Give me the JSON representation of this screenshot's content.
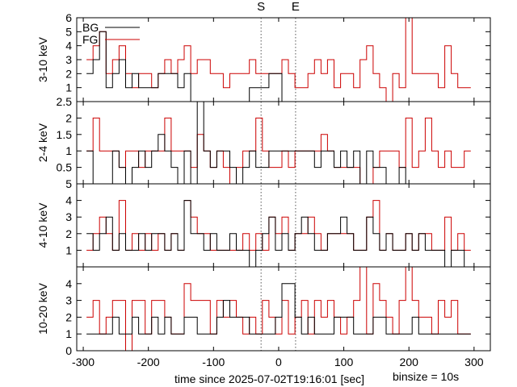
{
  "figure": {
    "markers": [
      {
        "label": "S",
        "x": -27
      },
      {
        "label": "E",
        "x": 26
      }
    ],
    "xlabel": "time since 2025-07-02T19:16:01 [sec]",
    "note": "binsize = 10s",
    "x_ticks": [
      -300,
      -200,
      -100,
      0,
      100,
      200,
      300
    ],
    "xlim": [
      -310,
      325
    ],
    "legend": {
      "bg_label": "BG",
      "fg_label": "FG",
      "position": "top-left"
    },
    "colors": {
      "bg": "#000000",
      "fg": "#cc0000",
      "markers": "#555555"
    }
  },
  "chart_data": [
    {
      "type": "line",
      "ylabel": "3-10 keV",
      "ylim": [
        0,
        6
      ],
      "y_ticks": [
        "1",
        "2",
        "3",
        "4",
        "5",
        "6"
      ],
      "x": [
        -290,
        -280,
        -270,
        -260,
        -250,
        -240,
        -230,
        -220,
        -210,
        -200,
        -190,
        -180,
        -170,
        -160,
        -150,
        -140,
        -130,
        -120,
        -110,
        -100,
        -90,
        -80,
        -70,
        -60,
        -50,
        -40,
        -30,
        -20,
        -10,
        0,
        10,
        20,
        30,
        40,
        50,
        60,
        70,
        80,
        90,
        100,
        110,
        120,
        130,
        140,
        150,
        160,
        170,
        180,
        190,
        200,
        210,
        220,
        230,
        240,
        250,
        260,
        270,
        280,
        290
      ],
      "series": [
        {
          "name": "BG",
          "values": [
            2,
            3,
            5,
            1,
            2,
            3,
            1,
            2,
            1,
            1,
            1,
            2,
            2,
            2,
            1,
            2,
            0,
            0,
            0,
            0,
            0,
            0,
            0,
            0,
            0,
            1,
            1,
            1,
            2,
            2,
            0,
            0,
            0,
            0,
            0,
            0,
            0,
            0,
            0,
            0,
            0,
            0,
            0,
            0,
            0,
            0,
            0,
            0,
            0,
            0,
            0,
            0,
            0,
            0,
            0,
            0,
            0,
            0,
            0
          ]
        },
        {
          "name": "FG",
          "values": [
            3,
            4,
            5,
            2,
            3,
            4,
            2,
            1,
            2,
            2,
            1,
            2,
            3,
            2,
            3,
            4,
            2,
            3,
            3,
            2,
            2,
            1,
            2,
            2,
            2,
            3,
            2,
            2,
            2,
            2,
            3,
            2,
            1,
            1,
            2,
            3,
            2,
            3,
            1,
            2,
            2,
            1,
            3,
            4,
            2,
            1,
            0,
            2,
            1,
            6,
            2,
            2,
            2,
            2,
            1,
            4,
            2,
            1,
            1
          ]
        }
      ]
    },
    {
      "type": "line",
      "ylabel": "2-4 keV",
      "ylim": [
        0,
        2.5
      ],
      "y_ticks": [
        "0.5",
        "1",
        "1.5",
        "2",
        "2.5"
      ],
      "x": [
        -290,
        -280,
        -270,
        -260,
        -250,
        -240,
        -230,
        -220,
        -210,
        -200,
        -190,
        -180,
        -170,
        -160,
        -150,
        -140,
        -130,
        -120,
        -110,
        -100,
        -90,
        -80,
        -70,
        -60,
        -50,
        -40,
        -30,
        -20,
        -10,
        0,
        10,
        20,
        30,
        40,
        50,
        60,
        70,
        80,
        90,
        100,
        110,
        120,
        130,
        140,
        150,
        160,
        170,
        180,
        190,
        200,
        210,
        220,
        230,
        240,
        250,
        260,
        270,
        280,
        290
      ],
      "series": [
        {
          "name": "BG",
          "values": [
            1,
            0,
            0,
            0,
            1,
            0.5,
            0,
            0.5,
            1,
            0.5,
            1,
            1.5,
            1,
            0.5,
            0,
            1,
            0,
            2.5,
            1,
            0.5,
            1,
            1,
            0.5,
            0,
            0.5,
            1,
            0.5,
            0.5,
            1,
            1,
            1,
            1,
            1,
            1,
            1,
            0.5,
            1,
            1,
            0.5,
            1,
            0.5,
            1,
            0,
            1,
            0.5,
            0.5,
            0,
            0,
            0.5,
            0,
            0,
            0,
            0,
            0,
            0,
            0,
            0,
            0,
            0
          ]
        },
        {
          "name": "FG",
          "values": [
            1,
            2,
            1,
            1,
            1,
            0.5,
            1,
            1,
            0.5,
            1,
            1,
            1,
            2,
            1,
            1,
            1,
            0.5,
            1.5,
            1,
            0.5,
            1,
            0.5,
            0,
            0.5,
            1,
            1,
            2,
            1,
            0.5,
            0.5,
            1,
            0.5,
            1,
            1,
            1,
            1,
            1.5,
            1,
            0.5,
            0.5,
            0.5,
            0.5,
            0,
            0,
            0.5,
            1,
            1,
            1,
            0.5,
            2,
            0.5,
            1,
            2,
            1,
            0.5,
            1,
            0.5,
            0.5,
            1
          ]
        }
      ]
    },
    {
      "type": "line",
      "ylabel": "4-10 keV",
      "ylim": [
        0,
        5
      ],
      "y_ticks": [
        "1",
        "2",
        "3",
        "4",
        "5"
      ],
      "x": [
        -290,
        -280,
        -270,
        -260,
        -250,
        -240,
        -230,
        -220,
        -210,
        -200,
        -190,
        -180,
        -170,
        -160,
        -150,
        -140,
        -130,
        -120,
        -110,
        -100,
        -90,
        -80,
        -70,
        -60,
        -50,
        -40,
        -30,
        -20,
        -10,
        0,
        10,
        20,
        30,
        40,
        50,
        60,
        70,
        80,
        90,
        100,
        110,
        120,
        130,
        140,
        150,
        160,
        170,
        180,
        190,
        200,
        210,
        220,
        230,
        240,
        250,
        260,
        270,
        280,
        290
      ],
      "series": [
        {
          "name": "BG",
          "values": [
            2,
            1,
            2,
            3,
            1,
            2,
            1,
            1,
            2,
            1,
            2,
            2,
            1,
            2,
            1,
            4,
            2,
            2,
            1,
            2,
            1,
            1,
            2,
            1,
            1,
            0,
            1,
            2,
            3,
            1,
            2,
            1,
            2,
            3,
            2,
            1,
            1,
            2,
            2,
            3,
            2,
            1,
            1,
            3,
            2,
            1,
            2,
            1,
            1,
            2,
            1,
            2,
            1,
            1,
            1,
            0,
            1,
            1,
            0
          ]
        },
        {
          "name": "FG",
          "values": [
            1,
            2,
            3,
            2,
            1,
            4,
            1,
            2,
            1,
            2,
            1,
            2,
            1,
            2,
            1,
            4,
            3,
            2,
            2,
            1,
            1,
            1,
            1,
            1,
            2,
            1,
            2,
            1,
            3,
            2,
            3,
            1,
            2,
            2,
            3,
            2,
            1,
            2,
            2,
            2,
            2,
            1,
            1,
            3,
            4,
            1,
            2,
            1,
            1,
            2,
            1,
            2,
            2,
            1,
            1,
            3,
            1,
            2,
            1
          ]
        }
      ]
    },
    {
      "type": "line",
      "ylabel": "10-20 keV",
      "ylim": [
        0,
        5
      ],
      "y_ticks": [
        "0",
        "1",
        "2",
        "3",
        "4"
      ],
      "x": [
        -290,
        -280,
        -270,
        -260,
        -250,
        -240,
        -230,
        -220,
        -210,
        -200,
        -190,
        -180,
        -170,
        -160,
        -150,
        -140,
        -130,
        -120,
        -110,
        -100,
        -90,
        -80,
        -70,
        -60,
        -50,
        -40,
        -30,
        -20,
        -10,
        0,
        10,
        20,
        30,
        40,
        50,
        60,
        70,
        80,
        90,
        100,
        110,
        120,
        130,
        140,
        150,
        160,
        170,
        180,
        190,
        200,
        210,
        220,
        230,
        240,
        250,
        260,
        270,
        280,
        290
      ],
      "series": [
        {
          "name": "BG",
          "values": [
            1,
            1,
            1,
            1,
            2,
            1,
            1,
            2,
            1,
            1,
            2,
            1,
            2,
            1,
            1,
            2,
            2,
            1,
            1,
            1,
            2,
            3,
            2,
            2,
            2,
            1,
            1,
            1,
            1,
            2,
            4,
            4,
            2,
            1,
            2,
            1,
            1,
            1,
            2,
            2,
            2,
            1,
            1,
            1,
            2,
            2,
            1,
            1,
            1,
            1,
            2,
            1,
            1,
            1,
            1,
            1,
            1,
            1,
            1
          ]
        },
        {
          "name": "FG",
          "values": [
            2,
            3,
            1,
            2,
            3,
            3,
            0,
            3,
            3,
            1,
            3,
            3,
            2,
            1,
            1,
            4,
            3,
            3,
            3,
            1,
            3,
            2,
            3,
            2,
            1,
            2,
            1,
            3,
            2,
            1,
            3,
            1,
            2,
            3,
            1,
            3,
            2,
            3,
            2,
            1,
            2,
            3,
            5,
            1,
            4,
            3,
            2,
            1,
            3,
            5,
            3,
            2,
            2,
            1,
            3,
            2,
            3,
            1,
            1
          ]
        }
      ]
    }
  ]
}
